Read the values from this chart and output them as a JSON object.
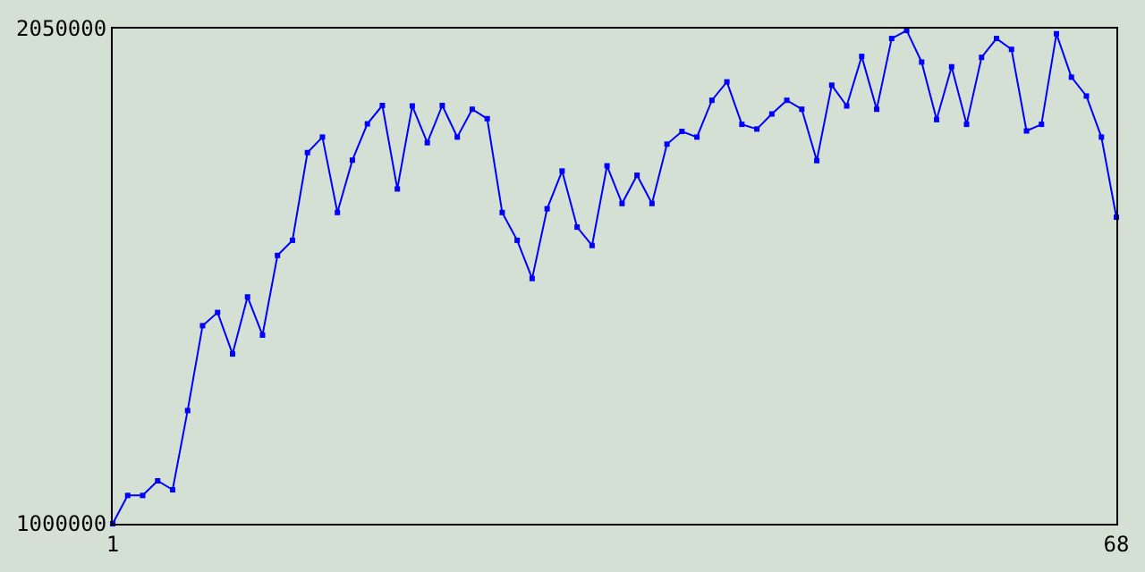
{
  "chart_data": {
    "type": "line",
    "marker": "square",
    "line_style": "solid",
    "x": [
      1,
      2,
      3,
      4,
      5,
      6,
      7,
      8,
      9,
      10,
      11,
      12,
      13,
      14,
      15,
      16,
      17,
      18,
      19,
      20,
      21,
      22,
      23,
      24,
      25,
      26,
      27,
      28,
      29,
      30,
      31,
      32,
      33,
      34,
      35,
      36,
      37,
      38,
      39,
      40,
      41,
      42,
      43,
      44,
      45,
      46,
      47,
      48,
      49,
      50,
      51,
      52,
      53,
      54,
      55,
      56,
      57,
      58,
      59,
      60,
      61,
      62,
      63,
      64,
      65,
      66,
      67,
      68
    ],
    "series": [
      {
        "color": "#0000ff",
        "values": [
          1000000,
          1060000,
          1060000,
          1091000,
          1072000,
          1240000,
          1420000,
          1448000,
          1360000,
          1481000,
          1400000,
          1569000,
          1601000,
          1787000,
          1820000,
          1660000,
          1771000,
          1848000,
          1887000,
          1710000,
          1886000,
          1808000,
          1887000,
          1820000,
          1879000,
          1859000,
          1660000,
          1601000,
          1520000,
          1668000,
          1748000,
          1629000,
          1590000,
          1759000,
          1679000,
          1739000,
          1679000,
          1805000,
          1832000,
          1820000,
          1898000,
          1937000,
          1847000,
          1837000,
          1869000,
          1898000,
          1879000,
          1770000,
          1930000,
          1886000,
          1991000,
          1879000,
          2029000,
          2046000,
          1979000,
          1857000,
          1969000,
          1847000,
          1989000,
          2029000,
          2006000,
          1833000,
          1847000,
          2039000,
          1947000,
          1907000,
          1820000,
          1650000
        ]
      }
    ],
    "xlim": [
      1,
      68
    ],
    "xticks": [
      1,
      68
    ],
    "ylim": [
      1000000,
      2050000
    ],
    "yticks": [
      1000000,
      2050000
    ]
  }
}
